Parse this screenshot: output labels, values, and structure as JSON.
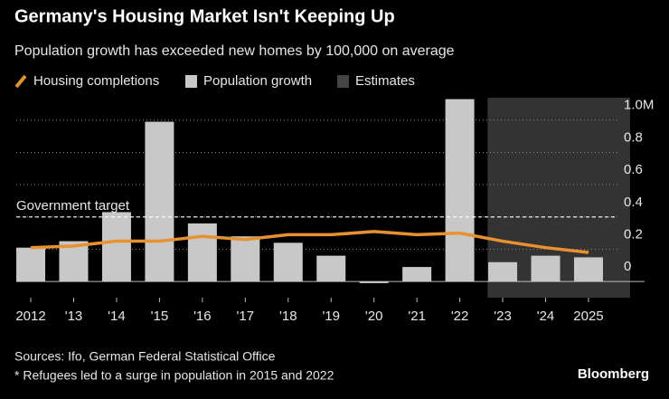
{
  "chart_data": {
    "type": "bar_line",
    "title": "Germany's Housing Market Isn't Keeping Up",
    "subtitle": "Population growth has exceeded new homes by 100,000 on average",
    "categories": [
      "2012",
      "'13",
      "'14",
      "'15",
      "'16",
      "'17",
      "'18",
      "'19",
      "'20",
      "'21",
      "'22",
      "'23",
      "'24",
      "2025"
    ],
    "series": [
      {
        "name": "Housing completions",
        "color": "#e8912f",
        "kind": "line",
        "values": [
          0.21,
          0.22,
          0.25,
          0.25,
          0.28,
          0.26,
          0.29,
          0.29,
          0.31,
          0.29,
          0.3,
          0.25,
          0.21,
          0.18
        ]
      },
      {
        "name": "Population growth",
        "color": "#c8c8c8",
        "kind": "bar",
        "values": [
          0.21,
          0.25,
          0.43,
          0.99,
          0.36,
          0.28,
          0.24,
          0.16,
          -0.01,
          0.09,
          1.13,
          0.12,
          0.16,
          0.15
        ]
      }
    ],
    "estimates_label": "Estimates",
    "target": {
      "label": "Government target",
      "value": 0.4
    },
    "ylim": [
      -0.1,
      1.15
    ],
    "yticks": [
      0,
      0.2,
      0.4,
      0.6,
      0.8,
      {
        "value": 1,
        "label": "1.0M"
      }
    ],
    "grid": true,
    "sources": "Sources: Ifo, German Federal Statistical Office",
    "footnote": "* Refugees led to a surge in population in 2015 and 2022",
    "brand": "Bloomberg"
  }
}
